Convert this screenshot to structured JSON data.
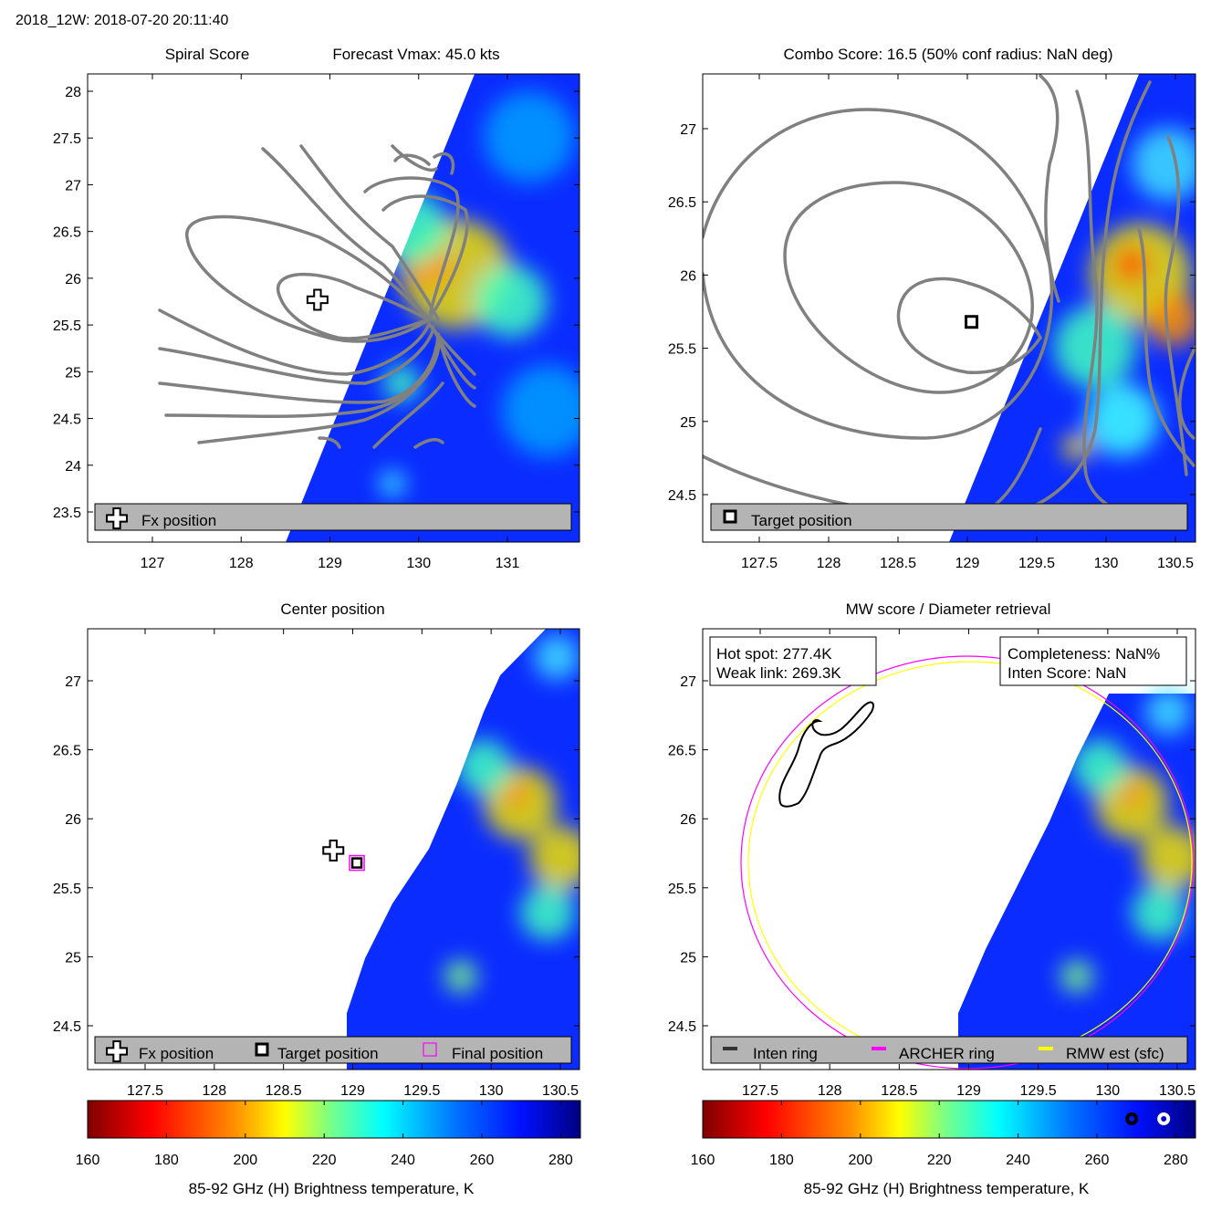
{
  "figure_title": "2018_12W: 2018-07-20 20:11:40",
  "colors": {
    "contour": "#808080",
    "archer_ring": "#ff00ff",
    "rmw_ring": "#ffff00",
    "inten_ring": "#000000",
    "legend_bg": "#b4b4b4",
    "swath_base": "#0a2cff"
  },
  "chart_data": [
    {
      "type": "heatmap",
      "panel": "spiral",
      "title": "Spiral Score",
      "subtitle": "Forecast Vmax: 45.0 kts",
      "xlim": [
        126.27,
        131.8
      ],
      "ylim": [
        23.18,
        28.18
      ],
      "xticks": [
        "127",
        "128",
        "129",
        "130",
        "131"
      ],
      "yticks": [
        "28",
        "27.5",
        "27",
        "26.5",
        "26",
        "25.5",
        "25",
        "24.5",
        "24",
        "23.5"
      ],
      "fx_position": {
        "lon": 128.86,
        "lat": 25.77
      },
      "legend": [
        "Fx position"
      ],
      "overlay": "gray spiral contours"
    },
    {
      "type": "heatmap",
      "panel": "combo",
      "title": "Combo Score: 16.5  (50% conf radius: NaN deg)",
      "xlim": [
        127.08,
        130.63
      ],
      "ylim": [
        24.31,
        27.37
      ],
      "xticks": [
        "127.5",
        "128",
        "128.5",
        "129",
        "129.5",
        "130",
        "130.5"
      ],
      "yticks": [
        "27",
        "26.5",
        "26",
        "25.5",
        "25",
        "24.5"
      ],
      "target_position": {
        "lon": 129.03,
        "lat": 25.68
      },
      "legend": [
        "Target position"
      ],
      "overlay": "gray combo score contours"
    },
    {
      "type": "heatmap",
      "panel": "center",
      "title": "Center position",
      "xlim": [
        127.1,
        130.65
      ],
      "ylim": [
        24.17,
        27.38
      ],
      "xticks": [
        "127.5",
        "128",
        "128.5",
        "129",
        "129.5",
        "130",
        "130.5"
      ],
      "yticks": [
        "27",
        "26.5",
        "26",
        "25.5",
        "25",
        "24.5"
      ],
      "grid": true,
      "fx_position": {
        "lon": 128.86,
        "lat": 25.77
      },
      "target_position": {
        "lon": 129.03,
        "lat": 25.68
      },
      "final_position": {
        "lon": 129.03,
        "lat": 25.68
      },
      "legend": [
        "Fx position",
        "Target position",
        "Final position"
      ]
    },
    {
      "type": "heatmap",
      "panel": "mw",
      "title": "MW score / Diameter retrieval",
      "xlim": [
        127.08,
        130.63
      ],
      "ylim": [
        24.17,
        27.38
      ],
      "xticks": [
        "127.5",
        "128",
        "128.5",
        "129",
        "129.5",
        "130",
        "130.5"
      ],
      "yticks": [
        "27",
        "26.5",
        "26",
        "25.5",
        "25",
        "24.5"
      ],
      "info_left": [
        "Hot spot: 277.4K",
        "Weak link: 269.3K"
      ],
      "info_right": [
        "Completeness: NaN%",
        "Inten Score: NaN"
      ],
      "legend": [
        "Inten ring",
        "ARCHER ring",
        "RMW est (sfc)"
      ]
    },
    {
      "type": "colorbar",
      "range": [
        160,
        285
      ],
      "ticks": [
        "160",
        "180",
        "200",
        "220",
        "240",
        "260",
        "280"
      ],
      "label": "85-92 GHz (H) Brightness temperature, K",
      "markers": [
        {
          "value": 269.3,
          "style": "black ring"
        },
        {
          "value": 277.4,
          "style": "white ring"
        }
      ]
    }
  ]
}
